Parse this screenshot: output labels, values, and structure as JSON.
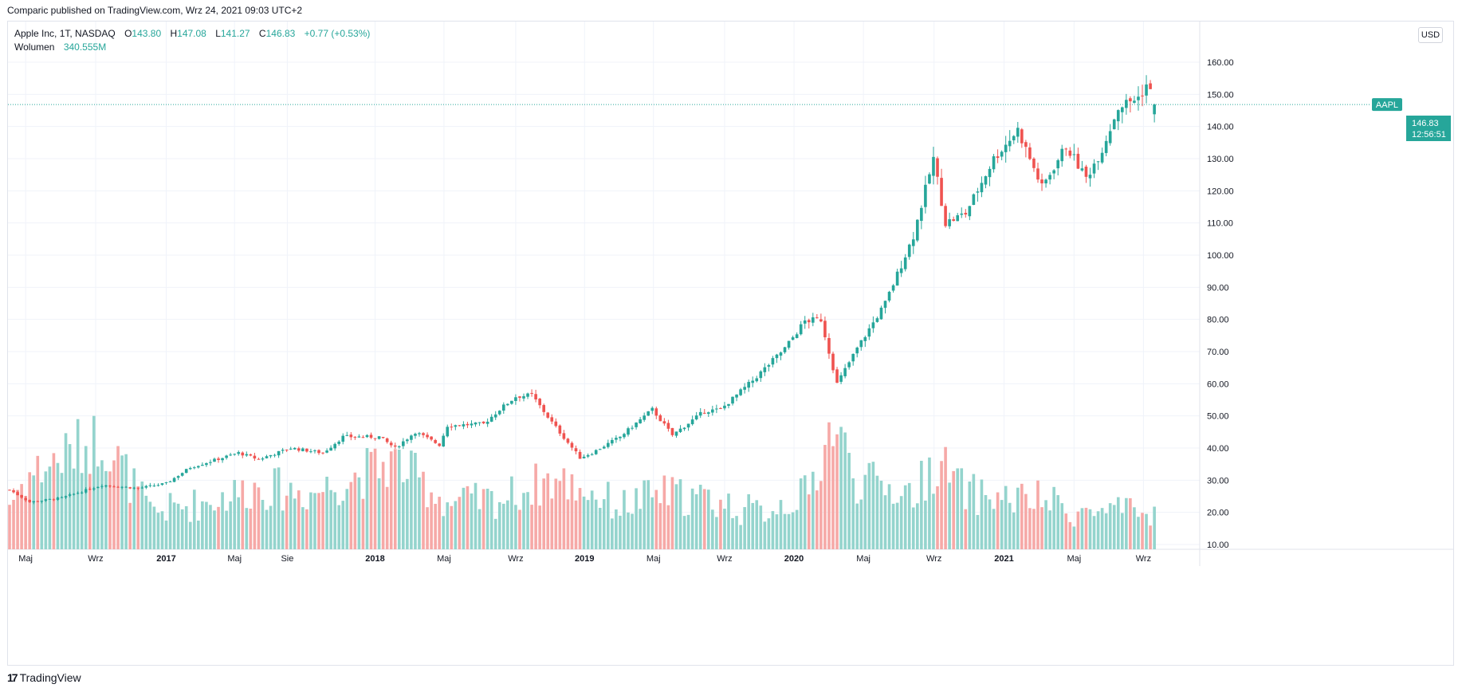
{
  "published_line": "Comparic published on TradingView.com, Wrz 24, 2021 09:03 UTC+2",
  "footer": {
    "brand": "TradingView"
  },
  "legend": {
    "symbol": "Apple Inc, 1T, NASDAQ",
    "open_label": "O",
    "open": "143.80",
    "high_label": "H",
    "high": "147.08",
    "low_label": "L",
    "low": "141.27",
    "close_label": "C",
    "close": "146.83",
    "change": "+0.77 (+0.53%)",
    "volume_label": "Wolumen",
    "volume": "340.555M"
  },
  "currency_button": "USD",
  "price_tag": {
    "symbol": "AAPL",
    "price": "146.83",
    "countdown": "12:56:51"
  },
  "colors": {
    "up": "#26a69a",
    "down": "#ef5350",
    "vol_up": "#94d4cd",
    "vol_down": "#f6a9a7",
    "grid": "#f0f3fa",
    "text": "#131722"
  },
  "chart_data": {
    "type": "candlestick",
    "title": "Apple Inc, 1T, NASDAQ",
    "timeframe": "weekly",
    "x_range": [
      "2016-04-04",
      "2021-09-24"
    ],
    "ylim": [
      10,
      160
    ],
    "y_ticks": [
      10,
      20,
      30,
      40,
      50,
      60,
      70,
      80,
      90,
      100,
      110,
      120,
      130,
      140,
      150,
      160
    ],
    "x_tick_labels": [
      {
        "date": "2016-05-02",
        "label": "Maj"
      },
      {
        "date": "2016-09-01",
        "label": "Wrz"
      },
      {
        "date": "2017-01-02",
        "label": "2017"
      },
      {
        "date": "2017-05-01",
        "label": "Maj"
      },
      {
        "date": "2017-08-01",
        "label": "Sie"
      },
      {
        "date": "2018-01-01",
        "label": "2018"
      },
      {
        "date": "2018-05-01",
        "label": "Maj"
      },
      {
        "date": "2018-09-03",
        "label": "Wrz"
      },
      {
        "date": "2019-01-01",
        "label": "2019"
      },
      {
        "date": "2019-05-01",
        "label": "Maj"
      },
      {
        "date": "2019-09-02",
        "label": "Wrz"
      },
      {
        "date": "2020-01-01",
        "label": "2020"
      },
      {
        "date": "2020-05-01",
        "label": "Maj"
      },
      {
        "date": "2020-09-01",
        "label": "Wrz"
      },
      {
        "date": "2021-01-01",
        "label": "2021"
      },
      {
        "date": "2021-05-03",
        "label": "Maj"
      },
      {
        "date": "2021-09-01",
        "label": "Wrz"
      }
    ],
    "close_anchors": [
      [
        "2016-04-04",
        27.0
      ],
      [
        "2016-05-09",
        23.2
      ],
      [
        "2016-07-04",
        24.5
      ],
      [
        "2016-09-12",
        28.5
      ],
      [
        "2016-11-14",
        27.5
      ],
      [
        "2017-01-02",
        29.0
      ],
      [
        "2017-02-13",
        34.0
      ],
      [
        "2017-05-08",
        38.5
      ],
      [
        "2017-06-12",
        36.5
      ],
      [
        "2017-08-07",
        40.0
      ],
      [
        "2017-10-02",
        38.5
      ],
      [
        "2017-11-06",
        43.5
      ],
      [
        "2018-01-08",
        43.5
      ],
      [
        "2018-02-05",
        40.0
      ],
      [
        "2018-03-12",
        45.0
      ],
      [
        "2018-04-23",
        41.0
      ],
      [
        "2018-05-07",
        47.0
      ],
      [
        "2018-07-09",
        47.5
      ],
      [
        "2018-08-06",
        52.0
      ],
      [
        "2018-09-03",
        56.0
      ],
      [
        "2018-10-01",
        56.5
      ],
      [
        "2018-11-05",
        48.0
      ],
      [
        "2018-12-24",
        37.0
      ],
      [
        "2019-01-14",
        38.5
      ],
      [
        "2019-03-04",
        43.5
      ],
      [
        "2019-04-29",
        52.0
      ],
      [
        "2019-06-03",
        44.0
      ],
      [
        "2019-07-29",
        51.5
      ],
      [
        "2019-08-26",
        52.0
      ],
      [
        "2019-10-21",
        61.0
      ],
      [
        "2019-12-16",
        71.0
      ],
      [
        "2020-01-20",
        79.5
      ],
      [
        "2020-02-17",
        80.0
      ],
      [
        "2020-03-16",
        60.0
      ],
      [
        "2020-04-20",
        71.0
      ],
      [
        "2020-06-08",
        85.0
      ],
      [
        "2020-07-27",
        106.0
      ],
      [
        "2020-08-31",
        130.0
      ],
      [
        "2020-09-21",
        110.0
      ],
      [
        "2020-10-26",
        113.0
      ],
      [
        "2020-12-14",
        130.0
      ],
      [
        "2021-01-25",
        139.0
      ],
      [
        "2021-03-08",
        121.0
      ],
      [
        "2021-04-19",
        134.0
      ],
      [
        "2021-05-24",
        124.0
      ],
      [
        "2021-06-21",
        133.0
      ],
      [
        "2021-07-19",
        146.0
      ],
      [
        "2021-08-23",
        149.0
      ],
      [
        "2021-09-06",
        153.0
      ],
      [
        "2021-09-24",
        146.83
      ]
    ],
    "last_candle": {
      "date": "2021-09-20",
      "open": 143.8,
      "high": 147.08,
      "low": 141.27,
      "close": 146.83
    },
    "volume_note": "Volume shown as overlay bars at bottom; last volume 340.555M",
    "volume_anchors": [
      [
        "2016-04-04",
        23
      ],
      [
        "2016-05-02",
        31
      ],
      [
        "2016-09-12",
        44
      ],
      [
        "2016-12-05",
        20
      ],
      [
        "2017-03-06",
        23
      ],
      [
        "2017-06-12",
        28
      ],
      [
        "2017-09-11",
        26
      ],
      [
        "2018-02-05",
        36
      ],
      [
        "2018-05-07",
        23
      ],
      [
        "2018-08-06",
        24
      ],
      [
        "2018-10-29",
        30
      ],
      [
        "2018-12-24",
        28
      ],
      [
        "2019-03-04",
        22
      ],
      [
        "2019-05-13",
        26
      ],
      [
        "2019-08-05",
        24
      ],
      [
        "2019-10-28",
        20
      ],
      [
        "2020-01-27",
        26
      ],
      [
        "2020-03-09",
        48
      ],
      [
        "2020-04-20",
        30
      ],
      [
        "2020-07-27",
        26
      ],
      [
        "2020-09-07",
        36
      ],
      [
        "2020-10-26",
        26
      ],
      [
        "2021-01-25",
        24
      ],
      [
        "2021-03-08",
        24
      ],
      [
        "2021-05-10",
        20
      ],
      [
        "2021-07-26",
        20
      ],
      [
        "2021-09-20",
        19
      ]
    ]
  }
}
